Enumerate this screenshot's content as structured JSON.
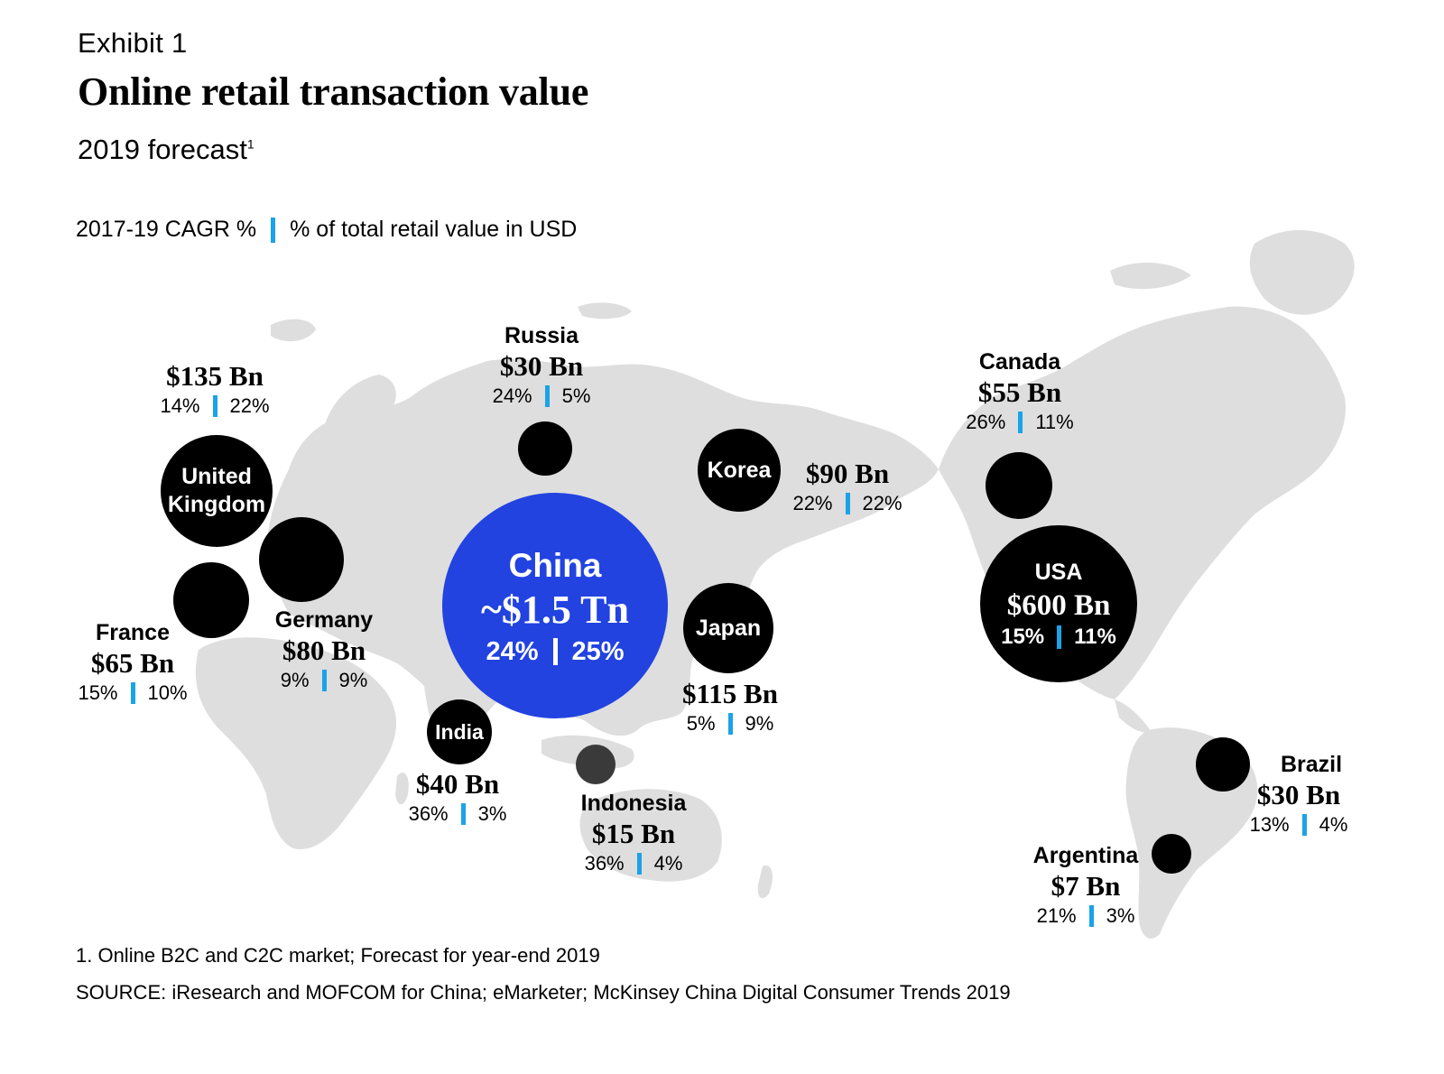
{
  "header": {
    "exhibit": "Exhibit 1",
    "title": "Online retail transaction value",
    "subtitle": "2019 forecast",
    "subtitle_note": "1"
  },
  "legend": {
    "cagr_label": "2017-19 CAGR %",
    "share_label": "% of total retail value in USD",
    "bar_color": "#1aa3e8"
  },
  "colors": {
    "land": "#dedede",
    "bubble": "#000000",
    "china_bubble": "#2243e0",
    "indonesia_bubble": "#3a3a3a"
  },
  "countries": {
    "uk": {
      "name": "United Kingdom",
      "line1": "United",
      "line2": "Kingdom",
      "value": "$135 Bn",
      "cagr": "14%",
      "share": "22%"
    },
    "russia": {
      "name": "Russia",
      "value": "$30 Bn",
      "cagr": "24%",
      "share": "5%"
    },
    "korea": {
      "name": "Korea",
      "value": "$90 Bn",
      "cagr": "22%",
      "share": "22%"
    },
    "canada": {
      "name": "Canada",
      "value": "$55 Bn",
      "cagr": "26%",
      "share": "11%"
    },
    "china": {
      "name": "China",
      "value": "~$1.5 Tn",
      "cagr": "24%",
      "share": "25%"
    },
    "usa": {
      "name": "USA",
      "value": "$600 Bn",
      "cagr": "15%",
      "share": "11%"
    },
    "france": {
      "name": "France",
      "value": "$65 Bn",
      "cagr": "15%",
      "share": "10%"
    },
    "germany": {
      "name": "Germany",
      "value": "$80 Bn",
      "cagr": "9%",
      "share": "9%"
    },
    "japan": {
      "name": "Japan",
      "value": "$115 Bn",
      "cagr": "5%",
      "share": "9%"
    },
    "india": {
      "name": "India",
      "value": "$40 Bn",
      "cagr": "36%",
      "share": "3%"
    },
    "indonesia": {
      "name": "Indonesia",
      "value": "$15 Bn",
      "cagr": "36%",
      "share": "4%"
    },
    "brazil": {
      "name": "Brazil",
      "value": "$30 Bn",
      "cagr": "13%",
      "share": "4%"
    },
    "argentina": {
      "name": "Argentina",
      "value": "$7 Bn",
      "cagr": "21%",
      "share": "3%"
    }
  },
  "footer": {
    "footnote": "1. Online B2C and C2C market; Forecast for year-end 2019",
    "source": "SOURCE: iResearch and MOFCOM for China; eMarketer; McKinsey China Digital Consumer Trends 2019"
  }
}
